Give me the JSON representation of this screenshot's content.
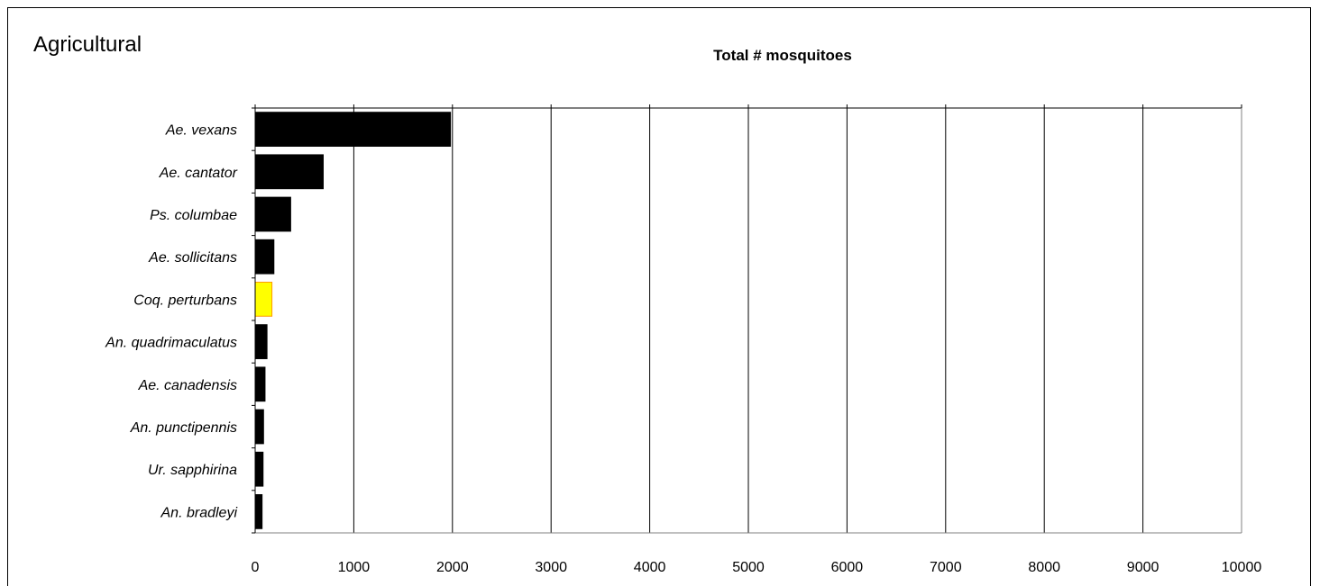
{
  "panel_title": "Agricultural",
  "chart_data": {
    "type": "bar",
    "orientation": "horizontal",
    "title": "Total # mosquitoes",
    "xlabel": "",
    "ylabel": "",
    "xlim": [
      0,
      10000
    ],
    "x_ticks": [
      0,
      1000,
      2000,
      3000,
      4000,
      5000,
      6000,
      7000,
      8000,
      9000,
      10000
    ],
    "x_axis_position": "bottom",
    "grid": "vertical",
    "legend": "none",
    "categories": [
      "Ae. vexans",
      "Ae. cantator",
      "Ps. columbae",
      "Ae. sollicitans",
      "Coq. perturbans",
      "An. quadrimaculatus",
      "Ae. canadensis",
      "An. punctipennis",
      "Ur. sapphirina",
      "An. bradleyi"
    ],
    "values": [
      1980,
      690,
      360,
      190,
      170,
      120,
      100,
      85,
      80,
      70
    ],
    "bar_colors": [
      "#000000",
      "#000000",
      "#000000",
      "#000000",
      "#FFFF00",
      "#000000",
      "#000000",
      "#000000",
      "#000000",
      "#000000"
    ],
    "highlight_stroke": "#FF9900",
    "bar_color": "#000000",
    "grid_color": "#000000"
  }
}
